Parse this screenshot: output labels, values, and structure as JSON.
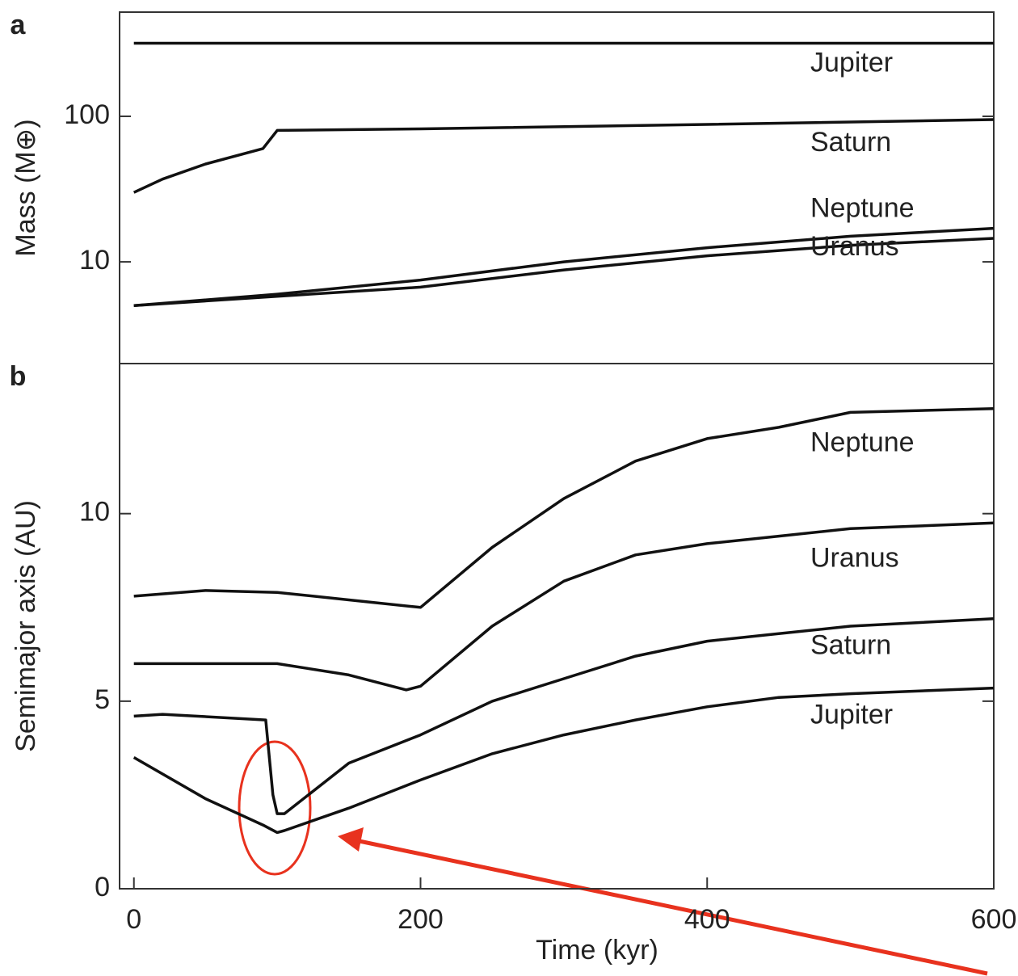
{
  "chart_data": [
    {
      "type": "line",
      "label": "a",
      "y_label": "Mass (M⊕)",
      "log_y": true,
      "xlim": [
        -10,
        600
      ],
      "ylim": [
        2,
        520
      ],
      "yticks": [
        10,
        100
      ],
      "series": [
        {
          "name": "Jupiter",
          "color": "#111111",
          "x": [
            0,
            600
          ],
          "values": [
            318,
            318
          ]
        },
        {
          "name": "Saturn",
          "color": "#111111",
          "x": [
            0,
            20,
            50,
            90,
            100,
            200,
            400,
            600
          ],
          "values": [
            30,
            37,
            47,
            60,
            80,
            82,
            88,
            95
          ]
        },
        {
          "name": "Neptune",
          "color": "#111111",
          "x": [
            0,
            100,
            200,
            300,
            400,
            500,
            600
          ],
          "values": [
            5,
            6,
            7.5,
            10,
            12.5,
            15,
            17
          ]
        },
        {
          "name": "Uranus",
          "color": "#111111",
          "x": [
            0,
            100,
            200,
            300,
            400,
            500,
            600
          ],
          "values": [
            5,
            5.8,
            6.7,
            8.8,
            11,
            13,
            14.5
          ]
        }
      ]
    },
    {
      "type": "line",
      "label": "b",
      "y_label": "Semimajor axis (AU)",
      "x_label": "Time (kyr)",
      "xlim": [
        -10,
        600
      ],
      "ylim": [
        0,
        14
      ],
      "xticks": [
        0,
        200,
        400,
        600
      ],
      "yticks": [
        0,
        5,
        10
      ],
      "series": [
        {
          "name": "Neptune",
          "color": "#111111",
          "x": [
            0,
            50,
            100,
            150,
            200,
            250,
            300,
            350,
            400,
            450,
            500,
            600
          ],
          "values": [
            7.8,
            7.95,
            7.9,
            7.7,
            7.5,
            9.1,
            10.4,
            11.4,
            12,
            12.3,
            12.7,
            12.8
          ]
        },
        {
          "name": "Uranus",
          "color": "#111111",
          "x": [
            0,
            50,
            100,
            150,
            190,
            200,
            250,
            300,
            350,
            400,
            450,
            500,
            600
          ],
          "values": [
            6,
            6,
            6,
            5.7,
            5.3,
            5.4,
            7,
            8.2,
            8.9,
            9.2,
            9.4,
            9.6,
            9.75
          ]
        },
        {
          "name": "Saturn",
          "color": "#111111",
          "x": [
            0,
            20,
            92,
            97,
            100,
            105,
            150,
            200,
            250,
            300,
            350,
            400,
            450,
            500,
            600
          ],
          "values": [
            4.6,
            4.65,
            4.5,
            2.5,
            2,
            2,
            3.35,
            4.1,
            5,
            5.6,
            6.2,
            6.6,
            6.8,
            7,
            7.2
          ]
        },
        {
          "name": "Jupiter",
          "color": "#111111",
          "x": [
            0,
            50,
            90,
            100,
            105,
            150,
            200,
            250,
            300,
            350,
            400,
            450,
            500,
            600
          ],
          "values": [
            3.5,
            2.4,
            1.7,
            1.5,
            1.55,
            2.15,
            2.9,
            3.6,
            4.1,
            4.5,
            4.85,
            5.1,
            5.2,
            5.35
          ]
        }
      ]
    }
  ]
}
